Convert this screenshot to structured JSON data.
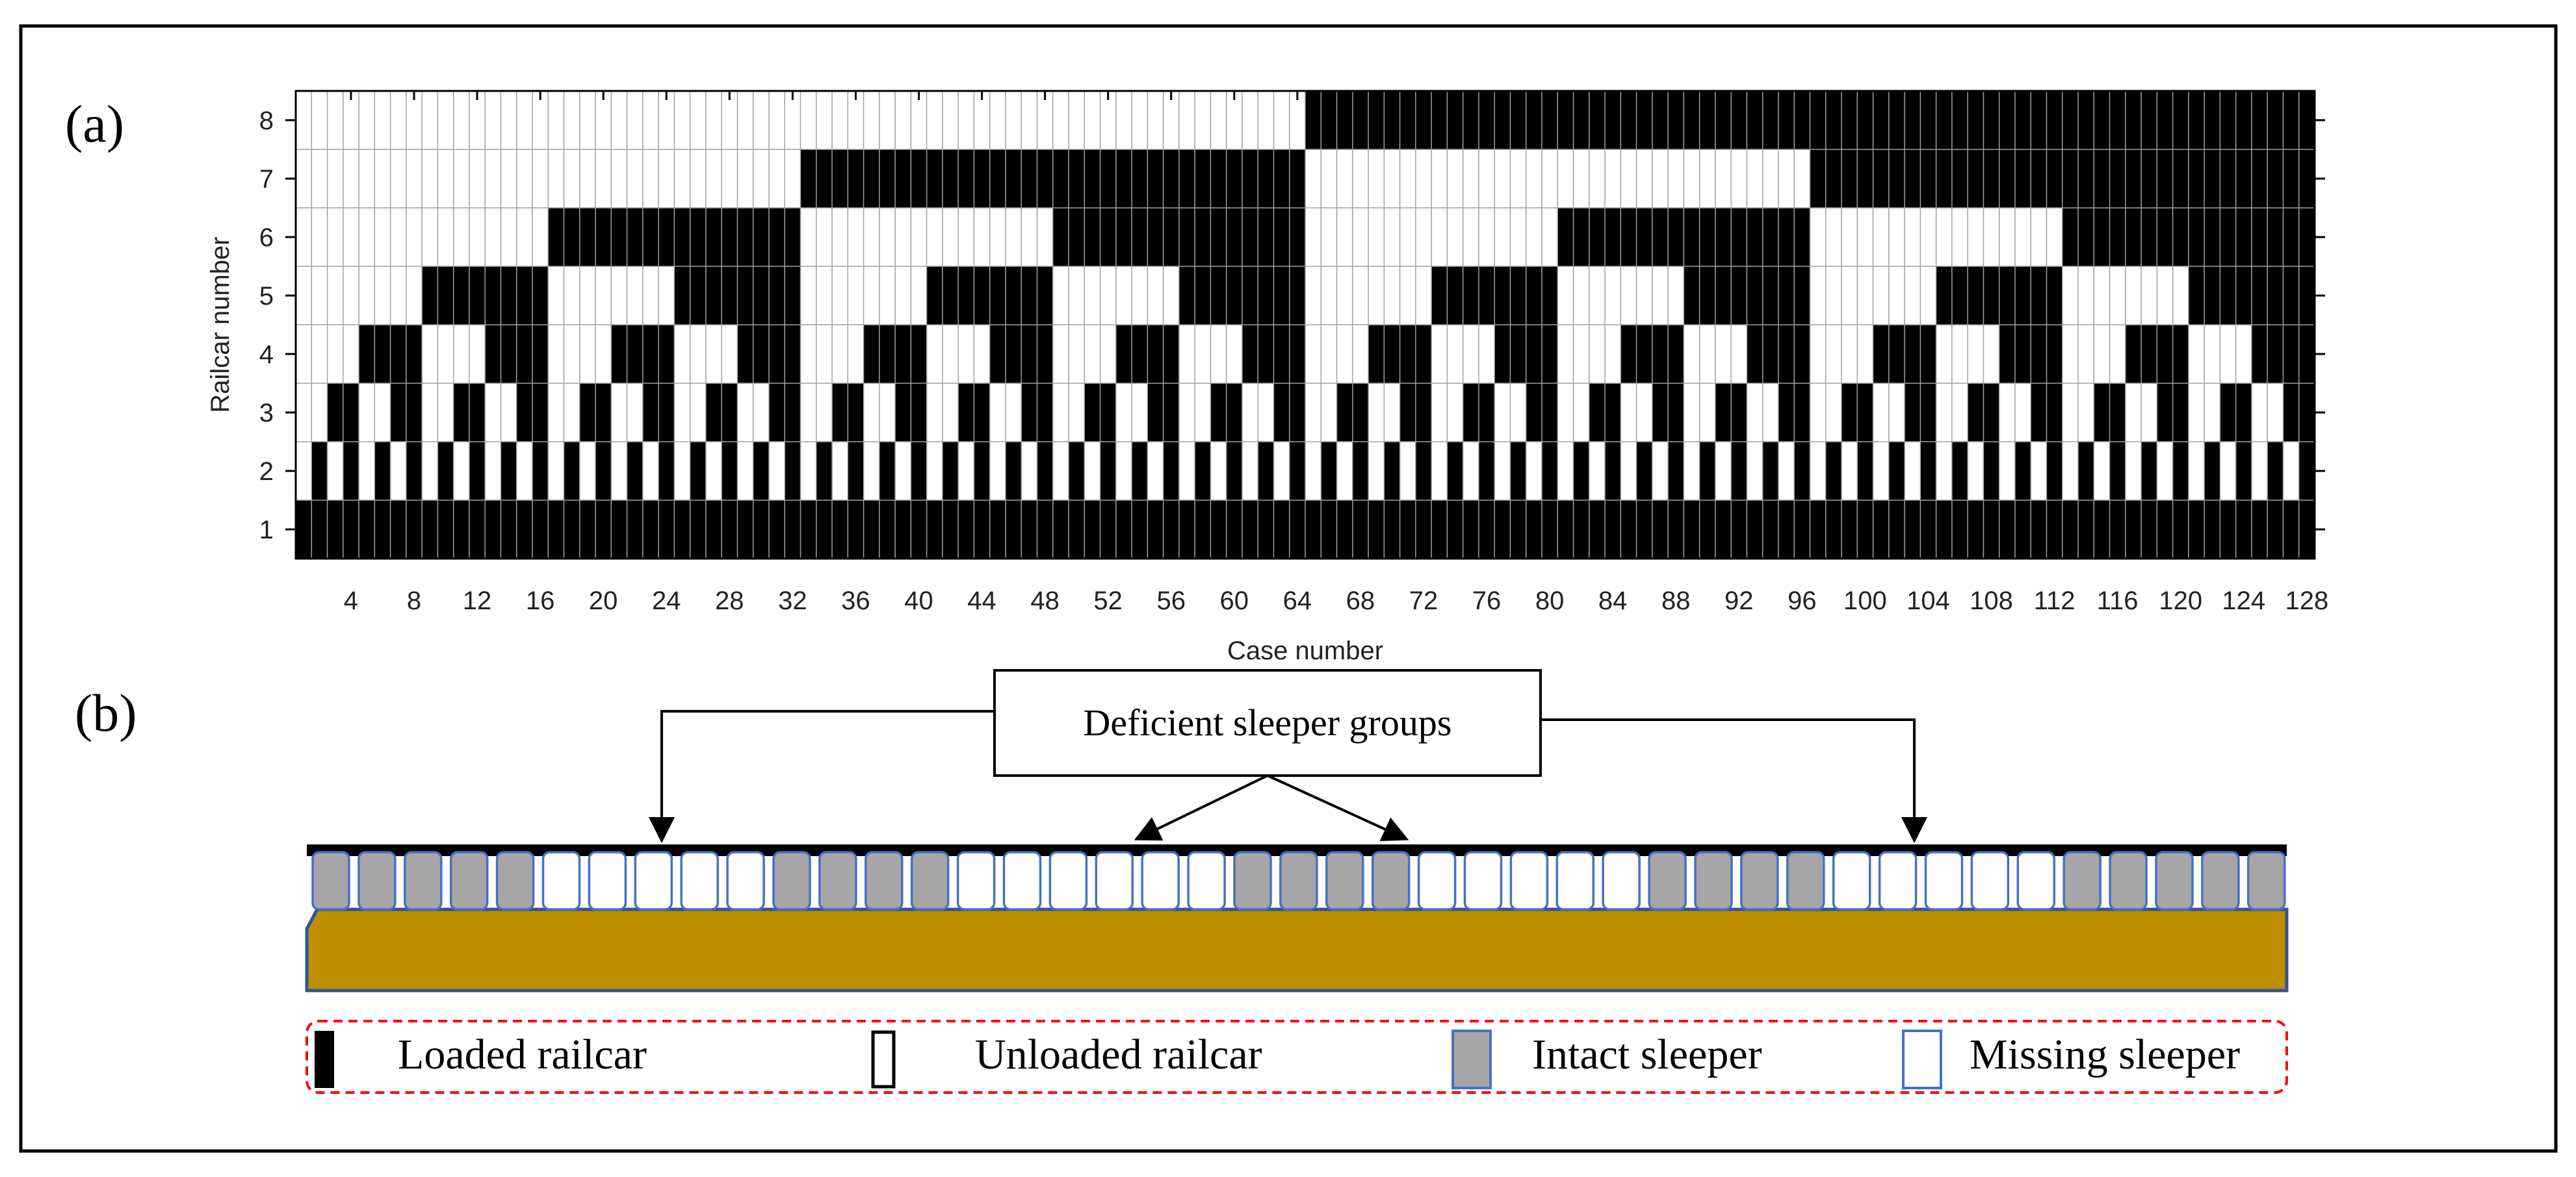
{
  "panel_a": {
    "label": "(a)",
    "chart_data": {
      "type": "heatmap",
      "title": "",
      "xlabel": "Case number",
      "ylabel": "Railcar number",
      "x_range": [
        1,
        128
      ],
      "y_range": [
        1,
        8
      ],
      "x_tick_labels": [
        "4",
        "8",
        "12",
        "16",
        "20",
        "24",
        "28",
        "32",
        "36",
        "40",
        "44",
        "48",
        "52",
        "56",
        "60",
        "64",
        "68",
        "72",
        "76",
        "80",
        "84",
        "88",
        "92",
        "96",
        "100",
        "104",
        "108",
        "112",
        "116",
        "120",
        "124",
        "128"
      ],
      "y_tick_labels": [
        "1",
        "2",
        "3",
        "4",
        "5",
        "6",
        "7",
        "8"
      ],
      "encoding": "cases are all 128 loaded/unloaded combinations of railcars 2-8; railcar 1 is always loaded",
      "colors": {
        "loaded": "#000000",
        "unloaded": "#ffffff",
        "grid": "#a0a0a0"
      },
      "grid": true
    }
  },
  "panel_b": {
    "label": "(b)",
    "callout": "Deficient  sleeper  groups",
    "sleeper_pattern": [
      1,
      1,
      1,
      1,
      1,
      0,
      0,
      0,
      0,
      0,
      1,
      1,
      1,
      1,
      0,
      0,
      0,
      0,
      0,
      0,
      1,
      1,
      1,
      1,
      0,
      0,
      0,
      0,
      0,
      1,
      1,
      1,
      1,
      0,
      0,
      0,
      0,
      0,
      1,
      1,
      1,
      1,
      1
    ],
    "colors": {
      "ballast": "#bf8f00",
      "rail": "#000000",
      "sleeper_fill": "#a6a6a6",
      "sleeper_edge": "#4472c4",
      "legend_border": "#ff0000"
    }
  },
  "legend": {
    "loaded": "Loaded railcar",
    "unloaded": "Unloaded railcar",
    "intact": "Intact sleeper",
    "missing": "Missing sleeper"
  }
}
